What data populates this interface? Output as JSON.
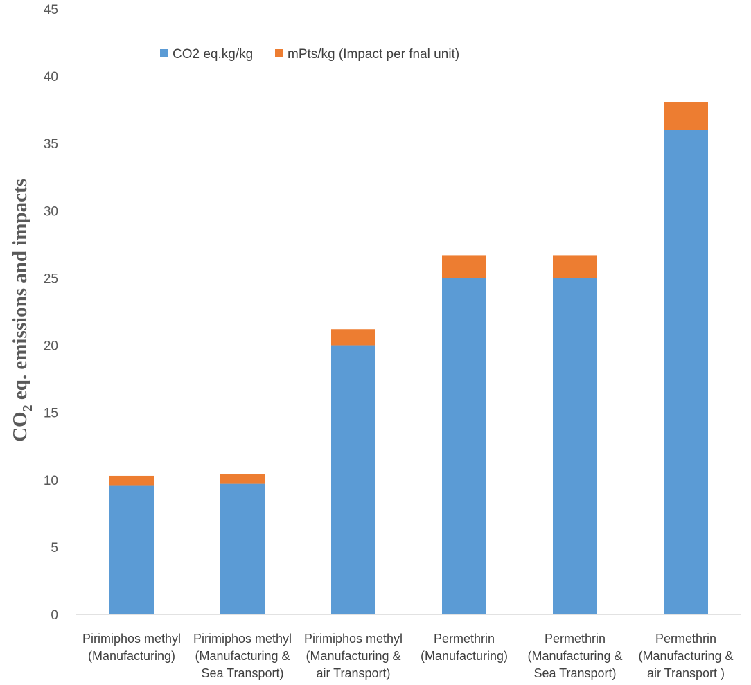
{
  "chart_data": {
    "type": "bar",
    "stacked": true,
    "categories": [
      [
        "Pirimiphos methyl",
        "(Manufacturing)"
      ],
      [
        "Pirimiphos methyl",
        "(Manufacturing &",
        "Sea Transport)"
      ],
      [
        "Pirimiphos methyl",
        "(Manufacturing &",
        "air Transport)"
      ],
      [
        "Permethrin",
        "(Manufacturing)"
      ],
      [
        "Permethrin",
        "(Manufacturing &",
        "Sea Transport)"
      ],
      [
        "Permethrin",
        "(Manufacturing &",
        "air Transport )"
      ]
    ],
    "series": [
      {
        "name": "CO2 eq.kg/kg",
        "color": "#5B9BD5",
        "values": [
          9.6,
          9.7,
          20.0,
          25.0,
          25.0,
          36.0
        ]
      },
      {
        "name": "mPts/kg (Impact per fnal unit)",
        "color": "#ED7D31",
        "values": [
          0.7,
          0.7,
          1.2,
          1.7,
          1.7,
          2.1
        ]
      }
    ],
    "ylabel": {
      "prefix": "CO",
      "subscript": "2",
      "suffix": " eq. emissions and impacts"
    },
    "ylim": [
      0,
      45
    ],
    "yticks": [
      0,
      5,
      10,
      15,
      20,
      25,
      30,
      35,
      40,
      45
    ],
    "legend_position": "top",
    "grid": false
  }
}
